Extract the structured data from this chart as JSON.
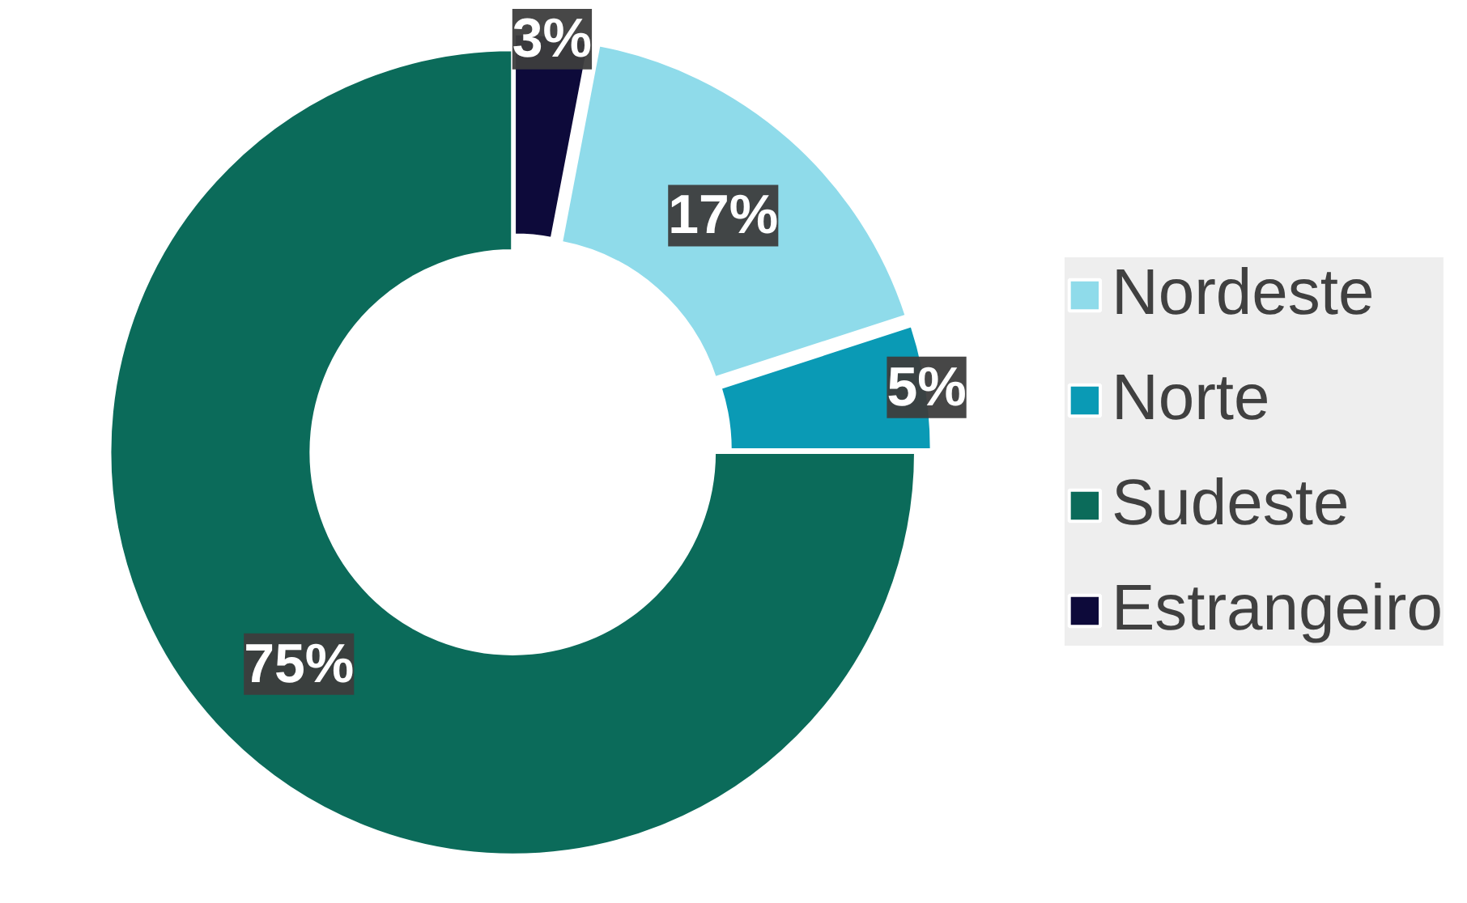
{
  "chart_data": {
    "type": "donut",
    "categories": [
      "Nordeste",
      "Norte",
      "Sudeste",
      "Estrangeiro"
    ],
    "values": [
      17,
      5,
      75,
      3
    ],
    "colors": [
      "#8fdbea",
      "#0a9ab5",
      "#0b6b5a",
      "#0d0a3a"
    ],
    "value_labels": [
      "17%",
      "5%",
      "75%",
      "3%"
    ],
    "legend": "right"
  }
}
